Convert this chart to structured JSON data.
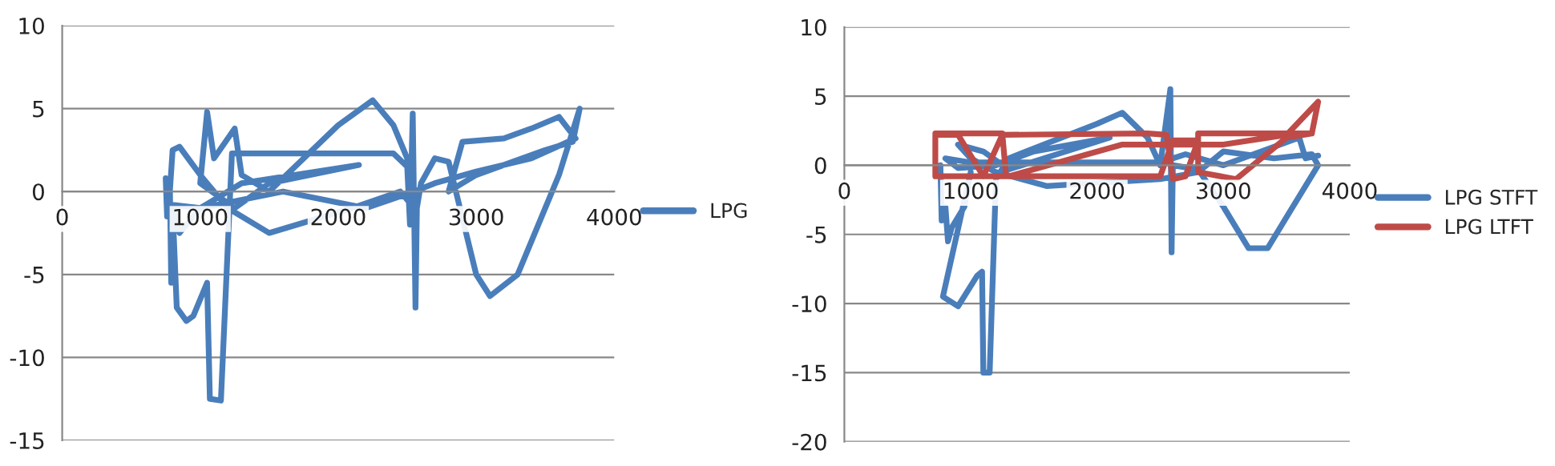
{
  "chart_data": [
    {
      "type": "line",
      "xlim": [
        0,
        4000
      ],
      "xticks": [
        0,
        1000,
        2000,
        3000,
        4000
      ],
      "ylim": [
        -15,
        10
      ],
      "yticks": [
        -15,
        -10,
        -5,
        0,
        5,
        10
      ],
      "grid": "y",
      "legend": "right",
      "series": [
        {
          "name": "LPG",
          "color": "#4a7ebb",
          "x": [
            750,
            760,
            780,
            790,
            800,
            820,
            830,
            900,
            950,
            1050,
            1070,
            1150,
            1230,
            1300,
            2400,
            2500,
            2520,
            2540,
            2560,
            2570,
            2600,
            2700,
            2800,
            3000,
            3100,
            3300,
            3600,
            3750,
            3700,
            3500,
            3000,
            2800,
            2900,
            3200,
            3400,
            3600,
            3720,
            3400,
            3000,
            2700,
            2550,
            2200,
            1600,
            1000,
            850,
            800,
            1000,
            1300,
            2150,
            1500,
            1250,
            1000,
            1050,
            1100,
            1250,
            1300,
            1500,
            2000,
            2250,
            2400,
            2500,
            2550,
            2450,
            2100,
            1500,
            1200,
            1000,
            850,
            800,
            780
          ],
          "values": [
            0.8,
            -1.5,
            0.5,
            -5.5,
            -1,
            -5,
            -7,
            -7.8,
            -7.5,
            -5.5,
            -12.5,
            -12.6,
            2.3,
            2.3,
            2.3,
            1.5,
            -2,
            4.7,
            -7,
            -1,
            0.5,
            2,
            1.8,
            -5,
            -6.3,
            -5,
            1,
            5,
            3,
            2.5,
            1,
            0,
            3,
            3.2,
            3.8,
            4.5,
            3.2,
            2,
            1.2,
            0.5,
            0,
            -1,
            0,
            -1,
            -2.5,
            -0.8,
            -1,
            0.5,
            1.6,
            0.5,
            -1,
            0.5,
            4.8,
            2,
            3.8,
            1,
            0,
            4,
            5.5,
            4,
            2,
            -1,
            0,
            -1,
            -2.5,
            -1,
            1,
            2.7,
            2.5,
            0
          ]
        }
      ]
    },
    {
      "type": "line",
      "xlim": [
        0,
        4000
      ],
      "xticks": [
        0,
        1000,
        2000,
        3000,
        4000
      ],
      "ylim": [
        -20,
        10
      ],
      "yticks": [
        -20,
        -15,
        -10,
        -5,
        0,
        5,
        10
      ],
      "grid": "y",
      "legend": "right",
      "series": [
        {
          "name": "LPG STFT",
          "color": "#4a7ebb",
          "x": [
            760,
            770,
            800,
            820,
            850,
            950,
            1000,
            780,
            900,
            1050,
            1090,
            1100,
            1150,
            1200,
            1300,
            2000,
            2200,
            2400,
            2500,
            2580,
            2590,
            2600,
            2800,
            3000,
            3200,
            3350,
            3550,
            3750,
            3700,
            3400,
            3000,
            2800,
            2500,
            1600,
            1200,
            1000,
            900,
            1100,
            1300,
            2100,
            1500,
            1200,
            900,
            800,
            1000,
            2500,
            2700,
            3000,
            3600,
            3650,
            3750
          ],
          "values": [
            0,
            -4,
            -3,
            -5.5,
            -4.5,
            -3,
            -0.5,
            -9.5,
            -10.2,
            -8,
            -7.7,
            -15,
            -15,
            -1,
            0.5,
            3,
            3.8,
            2,
            0,
            5.5,
            -6.3,
            0,
            -0.3,
            -3,
            -6,
            -6,
            -3,
            0,
            0.8,
            0.5,
            1,
            -0.5,
            -1,
            -1.5,
            -0.5,
            0.5,
            1.5,
            1,
            -0.3,
            2,
            1,
            0,
            -0.2,
            0.5,
            0.2,
            0.2,
            0.8,
            0,
            2,
            0.5,
            0.7
          ]
        },
        {
          "name": "LPG LTFT",
          "color": "#be4b48",
          "x": [
            720,
            1250,
            1280,
            720,
            720,
            900,
            1100,
            1250,
            2400,
            2550,
            2600,
            2700,
            2800,
            2600,
            2500,
            1300,
            2200,
            3000,
            3500,
            3750,
            3700,
            2800,
            2800,
            3100,
            3300,
            3500,
            3700
          ],
          "values": [
            2.3,
            2.3,
            -0.8,
            -0.8,
            2.2,
            2.2,
            -0.8,
            2.2,
            2.3,
            2.2,
            -1,
            -0.8,
            1.8,
            1.8,
            -0.8,
            -0.8,
            1.5,
            1.5,
            2.2,
            4.6,
            2.3,
            2.3,
            -0.5,
            -1,
            0.5,
            2,
            2.3
          ]
        }
      ]
    }
  ]
}
